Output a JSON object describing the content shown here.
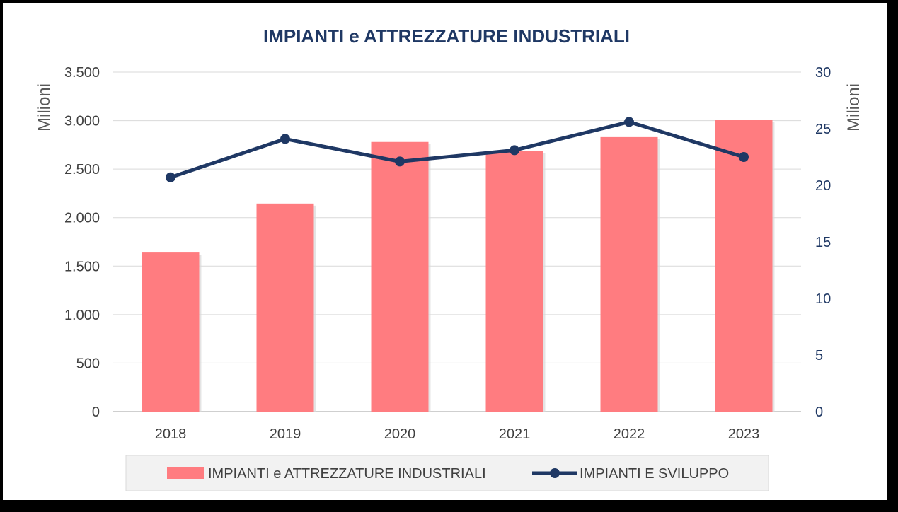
{
  "chart_data": {
    "type": "bar+line",
    "title": "IMPIANTI e ATTREZZATURE INDUSTRIALI",
    "categories": [
      "2018",
      "2019",
      "2020",
      "2021",
      "2022",
      "2023"
    ],
    "series": [
      {
        "name": "IMPIANTI e ATTREZZATURE INDUSTRIALI",
        "type": "bar",
        "axis": "left",
        "color": "#ff7c80",
        "values": [
          1640,
          2145,
          2780,
          2690,
          2830,
          3005
        ]
      },
      {
        "name": "IMPIANTI E SVILUPPO",
        "type": "line",
        "axis": "right",
        "color": "#1f3864",
        "values": [
          20.7,
          24.1,
          22.1,
          23.1,
          25.6,
          22.5
        ]
      }
    ],
    "y_left": {
      "label": "Milioni",
      "ylim": [
        0,
        3500
      ],
      "ticks": [
        0,
        500,
        1000,
        1500,
        2000,
        2500,
        3000,
        3500
      ],
      "tick_labels": [
        "0",
        "500",
        "1.000",
        "1.500",
        "2.000",
        "2.500",
        "3.000",
        "3.500"
      ]
    },
    "y_right": {
      "label": "Milioni",
      "ylim": [
        0,
        30
      ],
      "ticks": [
        0,
        5,
        10,
        15,
        20,
        25,
        30
      ],
      "tick_labels": [
        "0",
        "5",
        "10",
        "15",
        "20",
        "25",
        "30"
      ]
    },
    "grid": true,
    "legend_position": "bottom"
  }
}
